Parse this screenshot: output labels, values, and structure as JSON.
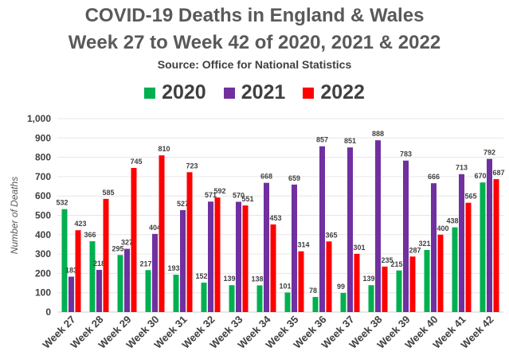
{
  "chart_data": {
    "type": "bar",
    "title": "COVID-19 Deaths in England & Wales",
    "subtitle": "Week 27 to Week 42 of 2020, 2021 & 2022",
    "source": "Source: Office for National Statistics",
    "xlabel": "",
    "ylabel": "Number of Deaths",
    "ylim": [
      0,
      1000
    ],
    "yticks": [
      "0",
      "100",
      "200",
      "300",
      "400",
      "500",
      "600",
      "700",
      "800",
      "900",
      "1,000"
    ],
    "grid": true,
    "legend_position": "top",
    "categories": [
      "Week 27",
      "Week 28",
      "Week 29",
      "Week 30",
      "Week 31",
      "Week 32",
      "Week 33",
      "Week 34",
      "Week 35",
      "Week 36",
      "Week 37",
      "Week 38",
      "Week 39",
      "Week 40",
      "Week 41",
      "Week 42"
    ],
    "series": [
      {
        "name": "2020",
        "color": "#00B050",
        "values": [
          532,
          366,
          295,
          217,
          193,
          152,
          139,
          138,
          101,
          78,
          99,
          139,
          215,
          321,
          438,
          670
        ]
      },
      {
        "name": "2021",
        "color": "#7030A0",
        "values": [
          183,
          218,
          327,
          404,
          527,
          571,
          570,
          668,
          659,
          857,
          851,
          888,
          783,
          666,
          713,
          792
        ]
      },
      {
        "name": "2022",
        "color": "#FF0000",
        "values": [
          423,
          585,
          745,
          810,
          723,
          592,
          551,
          453,
          314,
          365,
          301,
          235,
          287,
          400,
          565,
          687
        ]
      }
    ]
  }
}
